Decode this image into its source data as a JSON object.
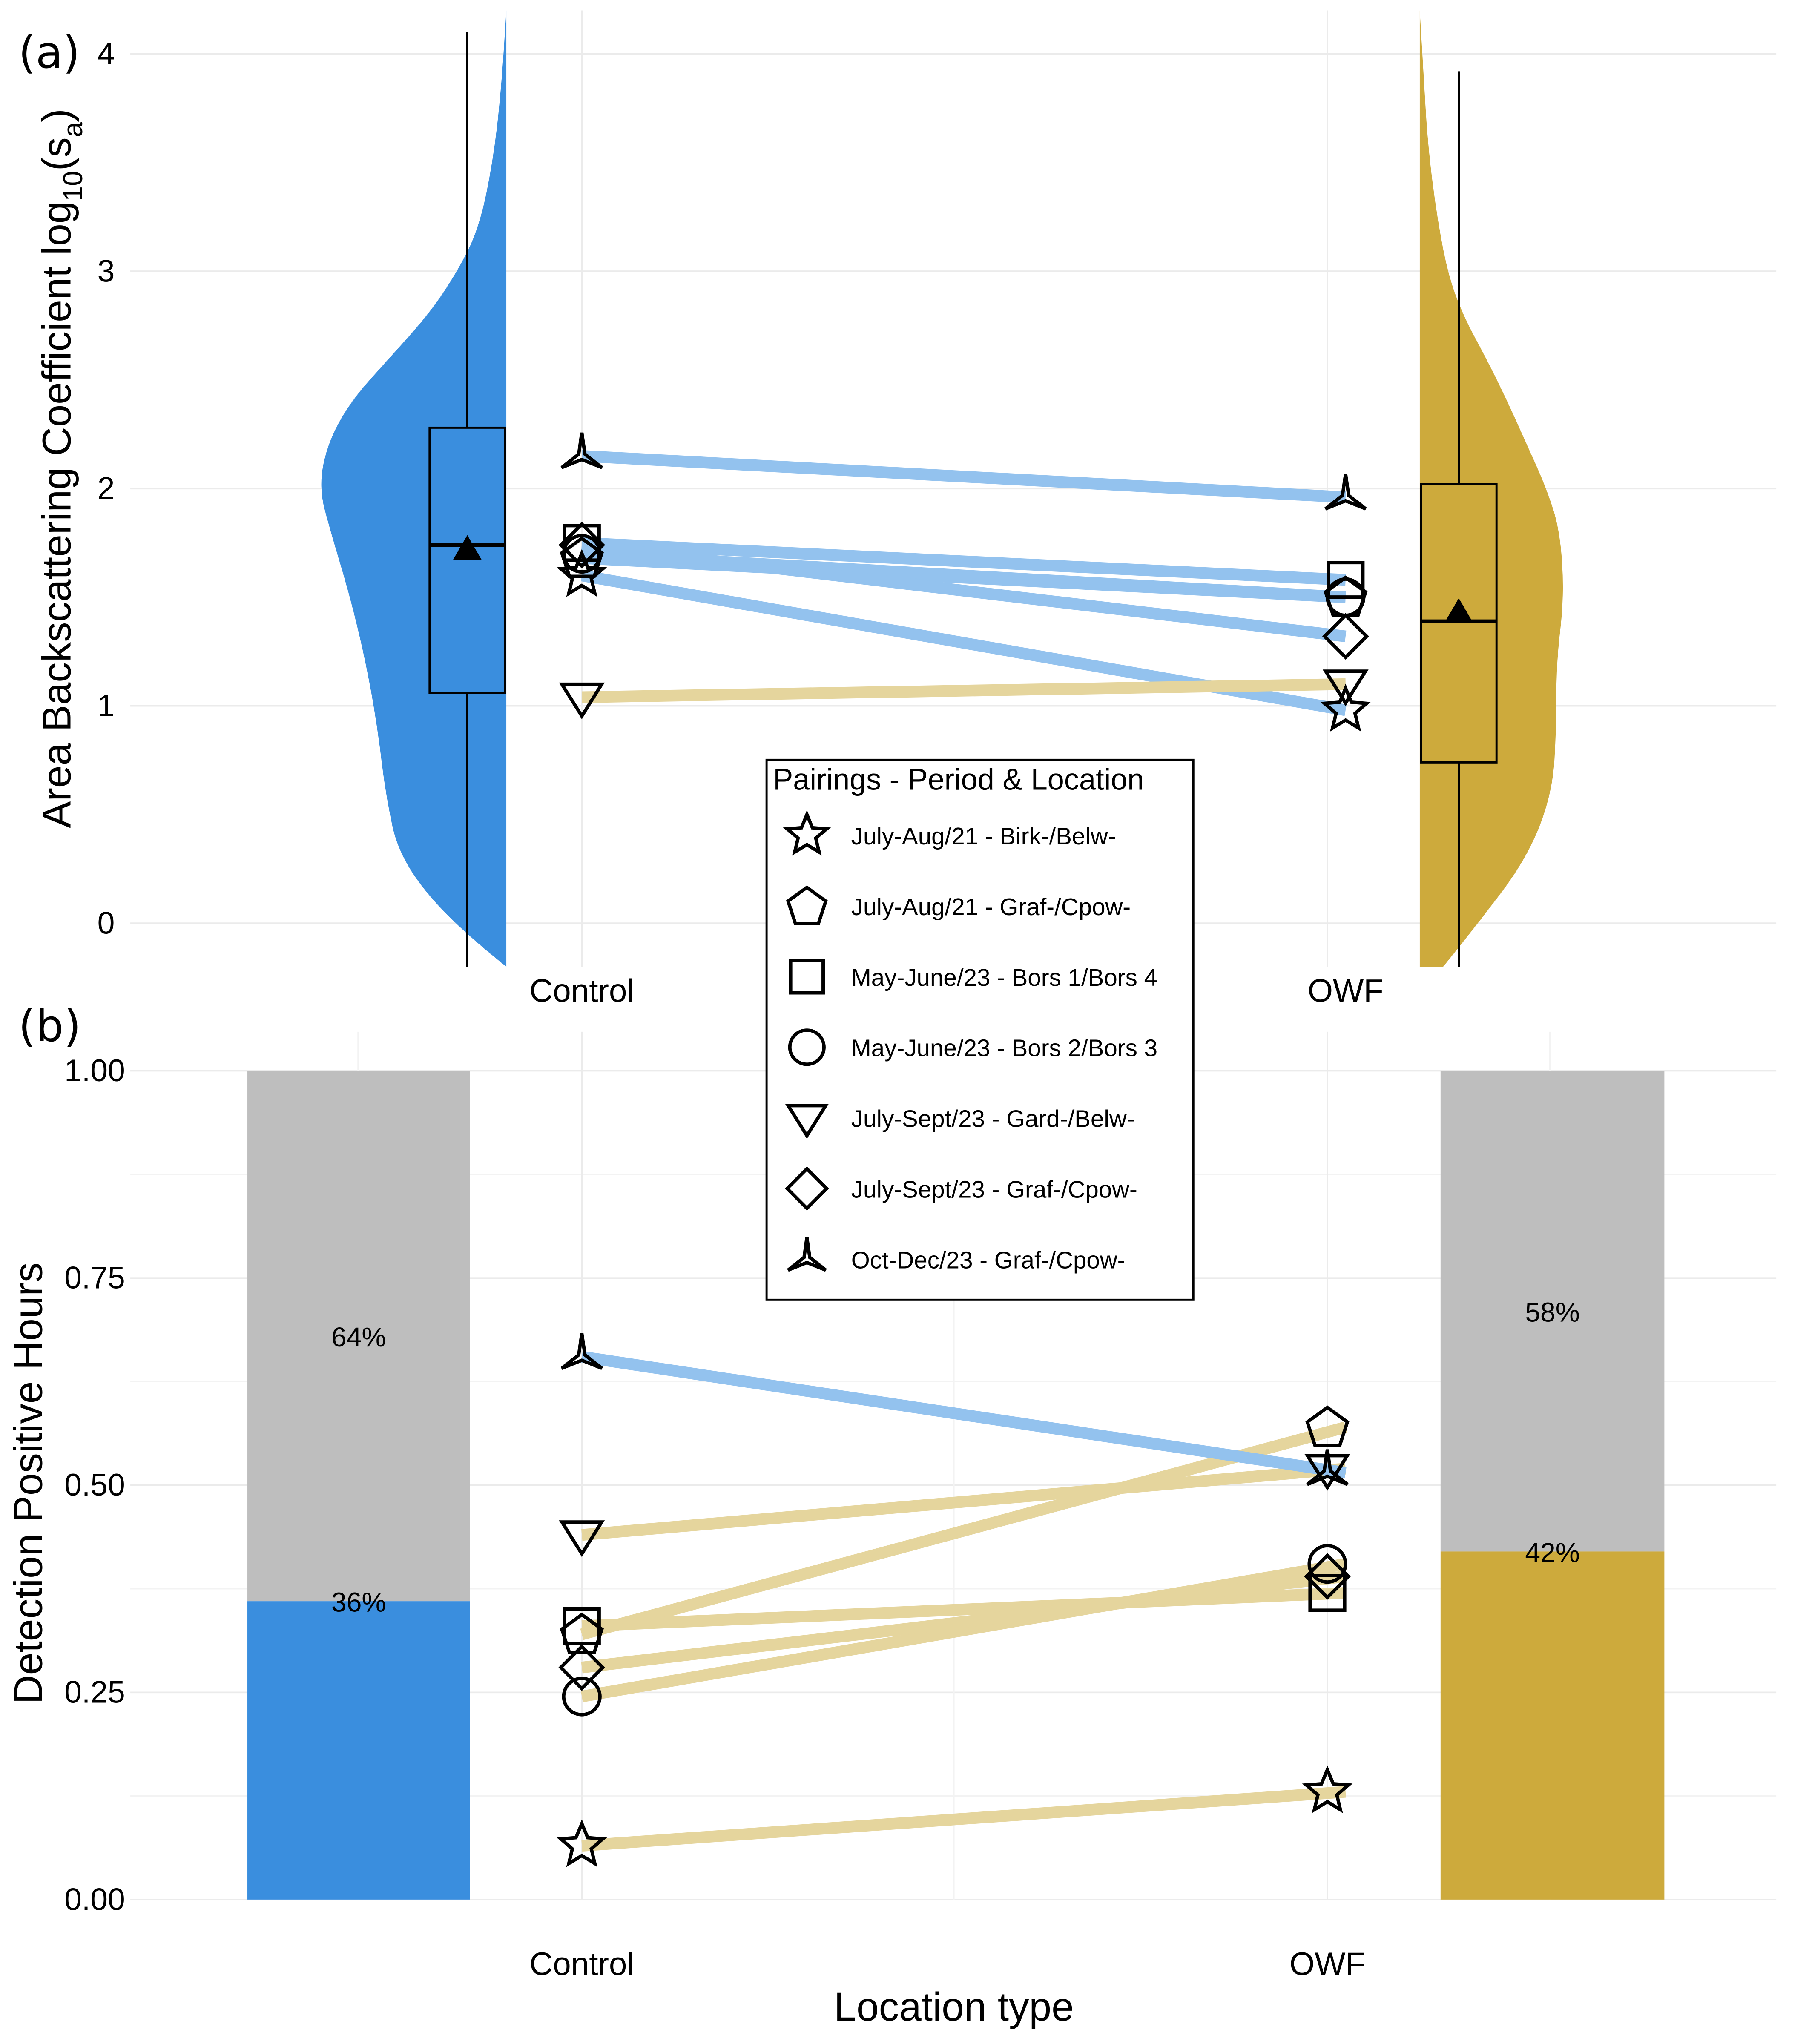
{
  "colors": {
    "control": "#3A8EDE",
    "owf": "#CDAA3C",
    "line_blue": "#93C2EE",
    "line_tan": "#E5D59D",
    "grey_bar": "#BEBEBE",
    "grid": "#EBEBEB"
  },
  "chart_data": [
    {
      "panel": "(a)",
      "type": "violin-box-paired",
      "ylabel_main": "Area Backscattering Coefficient log",
      "ylabel_sub": "10",
      "ylabel_paren_open": "(s",
      "ylabel_paren_sub": "a",
      "ylabel_paren_close": ")",
      "categories": [
        "Control",
        "OWF"
      ],
      "yticks": [
        "0",
        "1",
        "2",
        "3",
        "4"
      ],
      "ylim": [
        -0.2,
        4.2
      ],
      "boxplots": [
        {
          "group": "Control",
          "whisker_low": -0.2,
          "q1": 1.06,
          "median": 1.74,
          "q3": 2.28,
          "whisker_high": 4.1,
          "mean": 1.72
        },
        {
          "group": "OWF",
          "whisker_low": -0.2,
          "q1": 0.74,
          "median": 1.39,
          "q3": 2.02,
          "whisker_high": 3.92,
          "mean": 1.43
        }
      ],
      "density": {
        "Control": {
          "y": [
            -0.2,
            0.0,
            0.3,
            0.6,
            0.9,
            1.2,
            1.5,
            1.8,
            2.0,
            2.2,
            2.4,
            2.6,
            2.8,
            3.0,
            3.2,
            3.5,
            3.8,
            4.2
          ],
          "width": [
            0.0,
            0.28,
            0.55,
            0.62,
            0.66,
            0.72,
            0.8,
            0.9,
            0.96,
            0.92,
            0.8,
            0.6,
            0.4,
            0.25,
            0.14,
            0.07,
            0.03,
            0.0
          ]
        },
        "OWF": {
          "y": [
            -0.2,
            0.0,
            0.3,
            0.6,
            0.9,
            1.2,
            1.5,
            1.8,
            2.0,
            2.2,
            2.4,
            2.6,
            2.8,
            3.0,
            3.3,
            3.6,
            3.9,
            4.2
          ],
          "width": [
            0.12,
            0.3,
            0.55,
            0.68,
            0.7,
            0.7,
            0.74,
            0.72,
            0.65,
            0.55,
            0.45,
            0.34,
            0.22,
            0.14,
            0.08,
            0.04,
            0.02,
            0.0
          ]
        }
      },
      "pairs": [
        {
          "shape": "star",
          "control": 1.6,
          "owf": 0.98,
          "line": "blue"
        },
        {
          "shape": "pentagon",
          "control": 1.68,
          "owf": 1.5,
          "line": "blue"
        },
        {
          "shape": "square",
          "control": 1.75,
          "owf": 1.58,
          "line": "blue"
        },
        {
          "shape": "circle",
          "control": 1.7,
          "owf": 1.5,
          "line": "blue"
        },
        {
          "shape": "triangle-down",
          "control": 1.04,
          "owf": 1.1,
          "line": "tan"
        },
        {
          "shape": "diamond",
          "control": 1.74,
          "owf": 1.32,
          "line": "blue"
        },
        {
          "shape": "tripod",
          "control": 2.15,
          "owf": 1.96,
          "line": "blue"
        }
      ]
    },
    {
      "panel": "(b)",
      "type": "stacked-bar-paired",
      "ylabel": "Detection Positive Hours",
      "xlabel": "Location type",
      "categories": [
        "Control",
        "OWF"
      ],
      "yticks": [
        "0.00",
        "0.25",
        "0.50",
        "0.75",
        "1.00"
      ],
      "ylim": [
        0,
        1
      ],
      "bars": [
        {
          "group": "Control",
          "positive": 0.36,
          "negative": 0.64,
          "positive_label": "36%",
          "negative_label": "64%"
        },
        {
          "group": "OWF",
          "positive": 0.42,
          "negative": 0.58,
          "positive_label": "42%",
          "negative_label": "58%"
        }
      ],
      "pairs": [
        {
          "shape": "star",
          "control": 0.065,
          "owf": 0.13,
          "line": "tan"
        },
        {
          "shape": "pentagon",
          "control": 0.32,
          "owf": 0.57,
          "line": "tan"
        },
        {
          "shape": "square",
          "control": 0.33,
          "owf": 0.37,
          "line": "tan"
        },
        {
          "shape": "circle",
          "control": 0.245,
          "owf": 0.405,
          "line": "tan"
        },
        {
          "shape": "triangle-down",
          "control": 0.44,
          "owf": 0.52,
          "line": "tan"
        },
        {
          "shape": "diamond",
          "control": 0.28,
          "owf": 0.39,
          "line": "tan"
        },
        {
          "shape": "tripod",
          "control": 0.655,
          "owf": 0.515,
          "line": "blue"
        }
      ]
    }
  ],
  "legend": {
    "title": "Pairings - Period & Location",
    "items": [
      {
        "shape": "star",
        "label": "July-Aug/21 - Birk-/Belw-"
      },
      {
        "shape": "pentagon",
        "label": "July-Aug/21 - Graf-/Cpow-"
      },
      {
        "shape": "square",
        "label": "May-June/23 - Bors 1/Bors 4"
      },
      {
        "shape": "circle",
        "label": "May-June/23 - Bors 2/Bors 3"
      },
      {
        "shape": "triangle-down",
        "label": "July-Sept/23 - Gard-/Belw-"
      },
      {
        "shape": "diamond",
        "label": "July-Sept/23 - Graf-/Cpow-"
      },
      {
        "shape": "tripod",
        "label": "Oct-Dec/23 - Graf-/Cpow-"
      }
    ]
  }
}
